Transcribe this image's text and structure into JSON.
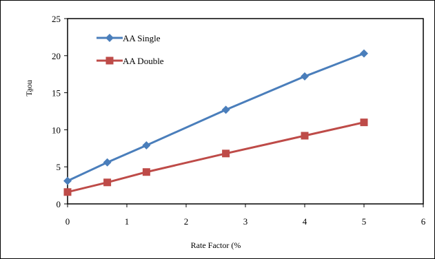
{
  "chart_data": {
    "type": "line",
    "title": "",
    "xlabel": "Rate Factor (%",
    "ylabel": "Ta̱ou",
    "xlim": [
      0,
      6
    ],
    "ylim": [
      0,
      25
    ],
    "xticks": [
      0,
      1,
      2,
      3,
      4,
      5,
      6
    ],
    "yticks": [
      0,
      5,
      10,
      15,
      20,
      25
    ],
    "grid": false,
    "legend_position": "top-left",
    "series": [
      {
        "name": "AA Single",
        "color": "#4a7ebb",
        "marker": "diamond",
        "x": [
          0,
          0.67,
          1.33,
          2.67,
          4,
          5
        ],
        "y": [
          3.1,
          5.6,
          7.9,
          12.7,
          17.2,
          20.3
        ]
      },
      {
        "name": "AA Double",
        "color": "#be4b48",
        "marker": "square",
        "x": [
          0,
          0.67,
          1.33,
          2.67,
          4,
          5
        ],
        "y": [
          1.6,
          2.9,
          4.3,
          6.8,
          9.2,
          11.0
        ]
      }
    ]
  }
}
